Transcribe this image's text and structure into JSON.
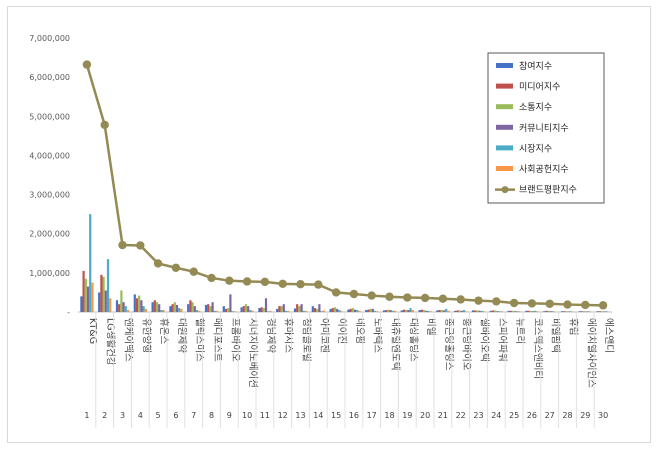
{
  "chart_data": {
    "type": "bar",
    "title": "",
    "xlabel": "",
    "ylabel": "",
    "ylim": [
      0,
      7000000
    ],
    "yticks": [
      "-",
      "1,000,000",
      "2,000,000",
      "3,000,000",
      "4,000,000",
      "5,000,000",
      "6,000,000",
      "7,000,000"
    ],
    "legend_position": "top-right",
    "grid": false,
    "ranks": [
      "1",
      "2",
      "3",
      "4",
      "5",
      "6",
      "7",
      "8",
      "9",
      "10",
      "11",
      "12",
      "13",
      "14",
      "15",
      "16",
      "17",
      "18",
      "19",
      "20",
      "21",
      "22",
      "23",
      "24",
      "25",
      "26",
      "27",
      "28",
      "29",
      "30"
    ],
    "categories": [
      "KT&G",
      "LG생활건강",
      "엔케이맥스",
      "유한양행",
      "휴온스",
      "대원제약",
      "헬릭스미스",
      "메디포스트",
      "프롬바이오",
      "시너지이노베이션",
      "경남제약",
      "휴마시스",
      "청담글로벌",
      "아미코젠",
      "이이진",
      "네오팜",
      "노바렉스",
      "내츄럴엔도텍",
      "대상홀딩스",
      "비엘",
      "종근당홀딩스",
      "종근당바이오",
      "셀바이오텍",
      "스피어파워",
      "뉴트리",
      "코스맥스엔비티",
      "비엘팜텍",
      "휴럼",
      "에이치엘사이언스",
      "에스앤디"
    ],
    "series": [
      {
        "name": "참여지수",
        "color": "#4472c4",
        "values": [
          400000,
          500000,
          300000,
          450000,
          250000,
          150000,
          200000,
          180000,
          150000,
          120000,
          100000,
          80000,
          90000,
          150000,
          80000,
          60000,
          50000,
          40000,
          40000,
          50000,
          40000,
          30000,
          40000,
          30000,
          30000,
          30000,
          20000,
          20000,
          20000,
          20000
        ]
      },
      {
        "name": "미디어지수",
        "color": "#c0504d",
        "values": [
          1050000,
          950000,
          200000,
          350000,
          300000,
          200000,
          300000,
          200000,
          80000,
          150000,
          120000,
          150000,
          200000,
          100000,
          100000,
          80000,
          60000,
          50000,
          60000,
          60000,
          50000,
          40000,
          40000,
          40000,
          30000,
          30000,
          30000,
          20000,
          20000,
          20000
        ]
      },
      {
        "name": "소통지수",
        "color": "#9bbb59",
        "values": [
          850000,
          900000,
          550000,
          420000,
          250000,
          250000,
          250000,
          150000,
          100000,
          200000,
          100000,
          150000,
          150000,
          80000,
          120000,
          100000,
          80000,
          60000,
          50000,
          50000,
          50000,
          40000,
          40000,
          40000,
          30000,
          30000,
          30000,
          20000,
          20000,
          20000
        ]
      },
      {
        "name": "커뮤니티지수",
        "color": "#8064a2",
        "values": [
          650000,
          550000,
          250000,
          300000,
          200000,
          180000,
          150000,
          250000,
          450000,
          150000,
          350000,
          200000,
          200000,
          200000,
          80000,
          60000,
          80000,
          50000,
          50000,
          30000,
          40000,
          30000,
          30000,
          20000,
          20000,
          20000,
          20000,
          15000,
          15000,
          15000
        ]
      },
      {
        "name": "시장지수",
        "color": "#4bacc6",
        "values": [
          2500000,
          1350000,
          150000,
          150000,
          50000,
          100000,
          50000,
          30000,
          20000,
          50000,
          20000,
          30000,
          30000,
          20000,
          50000,
          50000,
          30000,
          30000,
          100000,
          30000,
          80000,
          50000,
          30000,
          20000,
          20000,
          30000,
          20000,
          20000,
          20000,
          20000
        ]
      },
      {
        "name": "사회공헌지수",
        "color": "#f79646",
        "values": [
          750000,
          350000,
          50000,
          80000,
          50000,
          80000,
          30000,
          30000,
          20000,
          30000,
          30000,
          30000,
          30000,
          40000,
          20000,
          30000,
          20000,
          30000,
          50000,
          20000,
          30000,
          20000,
          20000,
          20000,
          20000,
          20000,
          10000,
          10000,
          10000,
          10000
        ]
      }
    ],
    "line": {
      "name": "브랜드평판지수",
      "color": "#948a54",
      "values": [
        6320000,
        4780000,
        1710000,
        1700000,
        1240000,
        1130000,
        1030000,
        870000,
        800000,
        780000,
        770000,
        720000,
        710000,
        700000,
        500000,
        460000,
        420000,
        390000,
        370000,
        360000,
        340000,
        320000,
        290000,
        270000,
        230000,
        220000,
        210000,
        190000,
        180000,
        170000
      ]
    }
  }
}
